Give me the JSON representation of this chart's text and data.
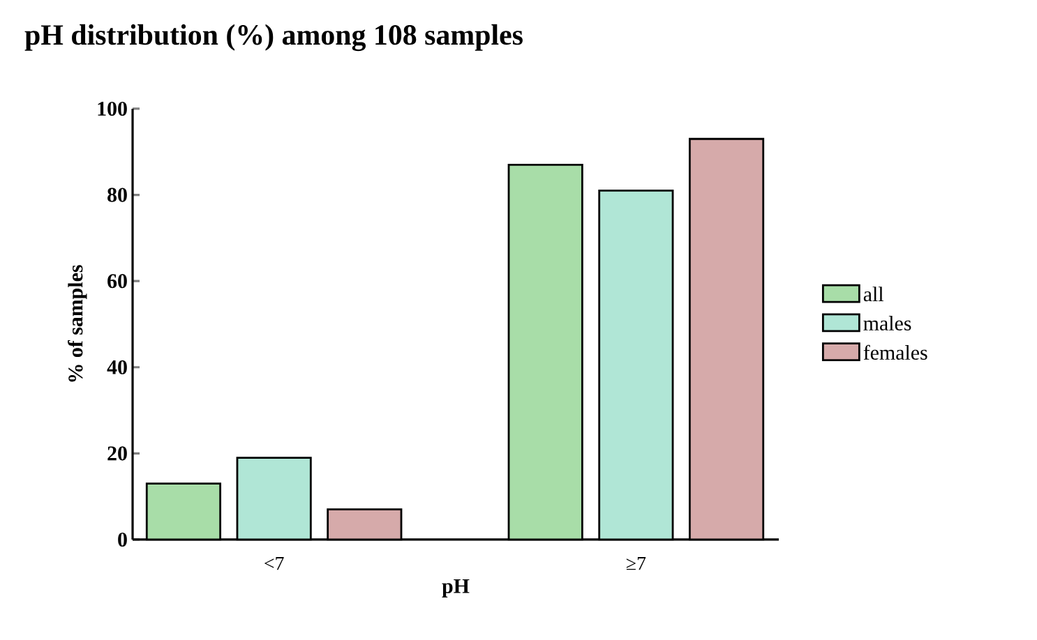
{
  "chart_data": {
    "type": "bar",
    "title": "pH distribution (%) among 108 samples",
    "xlabel": "pH",
    "ylabel": "% of samples",
    "categories": [
      "<7",
      "≥7"
    ],
    "series": [
      {
        "name": "all",
        "color": "#a8dda8",
        "values": [
          13,
          87
        ]
      },
      {
        "name": "males",
        "color": "#b0e6d6",
        "values": [
          19,
          81
        ]
      },
      {
        "name": "females",
        "color": "#d6aaaa",
        "values": [
          7,
          93
        ]
      }
    ],
    "ylim": [
      0,
      100
    ],
    "yticks": [
      0,
      20,
      40,
      60,
      80,
      100
    ],
    "legend": "right",
    "grid": false
  }
}
